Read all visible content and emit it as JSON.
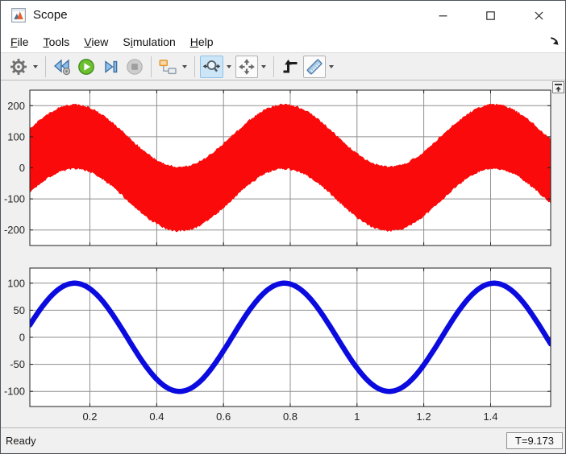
{
  "window": {
    "title": "Scope",
    "controls": [
      "minimize",
      "maximize",
      "close"
    ]
  },
  "menubar": {
    "items": [
      {
        "label": "File",
        "underline": 0
      },
      {
        "label": "Tools",
        "underline": 0
      },
      {
        "label": "View",
        "underline": 0
      },
      {
        "label": "Simulation",
        "underline": 1
      },
      {
        "label": "Help",
        "underline": 0
      }
    ]
  },
  "toolbar": {
    "buttons": [
      {
        "name": "settings",
        "icon": "gear-icon",
        "has_dropdown": true,
        "state": "normal"
      },
      {
        "name": "step-back",
        "icon": "step-back-icon",
        "state": "normal"
      },
      {
        "name": "run",
        "icon": "play-icon",
        "state": "normal"
      },
      {
        "name": "step-forward",
        "icon": "step-forward-icon",
        "state": "normal"
      },
      {
        "name": "stop",
        "icon": "stop-icon",
        "state": "disabled"
      },
      {
        "name": "highlight-simulink-block",
        "icon": "block-diagram-icon",
        "has_dropdown": true,
        "state": "normal"
      },
      {
        "name": "zoom",
        "icon": "zoom-x-icon",
        "has_dropdown": true,
        "state": "selected"
      },
      {
        "name": "fit-to-view",
        "icon": "fit-to-view-icon",
        "has_dropdown": true,
        "state": "normal"
      },
      {
        "name": "trigger",
        "icon": "trigger-icon",
        "state": "normal"
      },
      {
        "name": "cursor-measurements",
        "icon": "ruler-icon",
        "has_dropdown": true,
        "state": "normal"
      }
    ]
  },
  "canvas": {
    "dock_button_icon": "dock-up-icon"
  },
  "statusbar": {
    "status": "Ready",
    "time_display": "T=9.173"
  },
  "colors": {
    "selection_fill": "#cde6f7",
    "selection_border": "#8ec1ea",
    "grid": "#8f8f8f",
    "axes_border": "#1f1f1f",
    "red_signal": "#fa0a0a",
    "blue_signal": "#0b0bdf",
    "window_border": "#4e535a"
  },
  "chart_data": [
    {
      "type": "line",
      "title": "",
      "xlabel": "",
      "ylabel": "",
      "xlim": [
        0.02,
        1.58
      ],
      "ylim": [
        -250,
        250
      ],
      "x_ticks": [
        0.2,
        0.4,
        0.6,
        0.8,
        1,
        1.2,
        1.4
      ],
      "x_tick_labels": [
        "0.2",
        "0.4",
        "0.6",
        "0.8",
        "1",
        "1.2",
        "1.4"
      ],
      "show_x_tick_labels": false,
      "y_ticks": [
        200,
        100,
        0,
        -100,
        -200
      ],
      "y_tick_labels": [
        "200",
        "100",
        "0",
        "-100",
        "-200"
      ],
      "grid": true,
      "legend": "none",
      "series": [
        {
          "name": "noisy-sine-band",
          "color": "#fa0a0a",
          "description": "100*sin(10t) carrier plus +/-100 high-frequency component, rendered as a solid red band with ragged edges; envelope spans -200..200, peaks near t=0.155, 0.785, 1.41",
          "amplitude": 100,
          "angular_frequency": 10,
          "phase": 0.03,
          "band_halfwidth": 100,
          "edge_jitter": 7
        }
      ]
    },
    {
      "type": "line",
      "title": "",
      "xlabel": "",
      "ylabel": "",
      "xlim": [
        0.02,
        1.58
      ],
      "ylim": [
        -128,
        128
      ],
      "x_ticks": [
        0.2,
        0.4,
        0.6,
        0.8,
        1,
        1.2,
        1.4
      ],
      "x_tick_labels": [
        "0.2",
        "0.4",
        "0.6",
        "0.8",
        "1",
        "1.2",
        "1.4"
      ],
      "show_x_tick_labels": true,
      "y_ticks": [
        100,
        50,
        0,
        -50,
        -100
      ],
      "y_tick_labels": [
        "100",
        "50",
        "0",
        "-50",
        "-100"
      ],
      "grid": true,
      "legend": "none",
      "series": [
        {
          "name": "sine-wave",
          "color": "#0b0bdf",
          "description": "clean sine 100*sin(10t), thick blue trace, peaks near t=0.155, 0.785, 1.41",
          "amplitude": 100,
          "angular_frequency": 10,
          "phase": 0.03,
          "line_width": 6.5
        }
      ]
    }
  ]
}
